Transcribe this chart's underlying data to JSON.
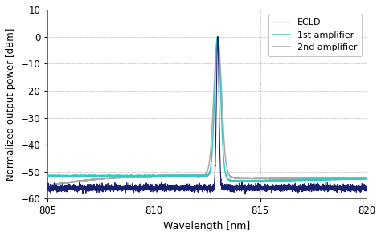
{
  "title": "",
  "xlabel": "Wavelength [nm]",
  "ylabel": "Normalized output power [dBm]",
  "xlim": [
    805,
    820
  ],
  "ylim": [
    -60,
    10
  ],
  "yticks": [
    10,
    0,
    -10,
    -20,
    -30,
    -40,
    -50,
    -60
  ],
  "xticks": [
    805,
    810,
    815,
    820
  ],
  "legend_labels": [
    "ECLD",
    "1st amplifier",
    "2nd amplifier"
  ],
  "colors": {
    "ecld": "#1a2070",
    "amp1": "#3ac8be",
    "amp2": "#aaaaaa"
  },
  "peak_wavelength": 813.0,
  "background_color": "#ffffff",
  "grid_color": "#bbbbbb"
}
